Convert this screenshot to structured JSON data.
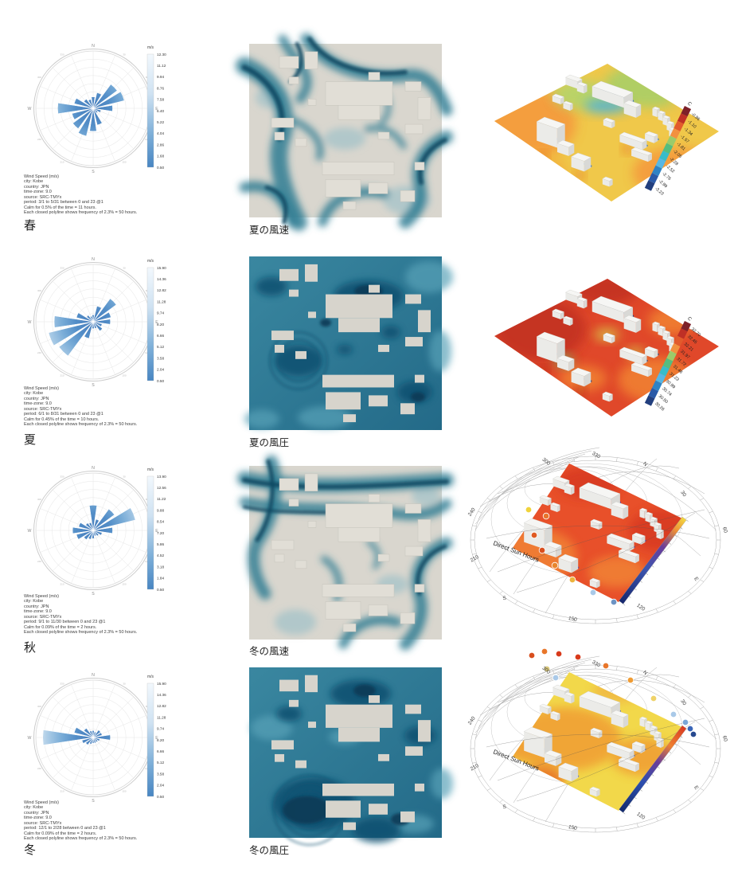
{
  "page": {
    "background": "#ffffff"
  },
  "windrose_common": {
    "cardinal_labels": [
      "N",
      "E",
      "S",
      "W"
    ],
    "degree_labels": [
      "30",
      "60",
      "120",
      "150",
      "210",
      "240",
      "300",
      "330"
    ],
    "petal_color_inner": "#4079ba",
    "petal_color_tip": "#dcebf6",
    "legend_top_color": "#f2f8fd",
    "legend_bottom_color": "#4886c2"
  },
  "windroses": [
    {
      "season_label": "春",
      "legend_title": "m/s",
      "legend_values": [
        "12.30",
        "11.12",
        "9.94",
        "8.76",
        "7.58",
        "6.40",
        "5.22",
        "4.04",
        "2.86",
        "1.68",
        "0.50"
      ],
      "meta_lines": [
        "Wind Speed (m/s)",
        "city: Kobe",
        "country: JPN",
        "time-zone: 9.0",
        "source: SRC-TMYx",
        "period: 3/1 to 5/31 between 0 and 23 @1",
        "Calm for 0.5% of the time = 11 hours.",
        "Each closed polyline shows frequency of 2.3% = 50 hours."
      ],
      "petals": [
        0.2,
        0.28,
        0.52,
        0.56,
        0.34,
        0.14,
        0.1,
        0.3,
        0.4,
        0.5,
        0.44,
        0.38,
        0.62,
        0.34,
        0.2,
        0.16
      ]
    },
    {
      "season_label": "夏",
      "legend_title": "m/s",
      "legend_values": [
        "15.90",
        "14.36",
        "12.82",
        "11.28",
        "9.74",
        "8.20",
        "6.66",
        "5.12",
        "3.58",
        "2.04",
        "0.50"
      ],
      "meta_lines": [
        "Wind Speed (m/s)",
        "city: Kobe",
        "country: JPN",
        "time-zone: 9.0",
        "source: SRC-TMYx",
        "period: 6/1 to 8/31 between 0 and 23 @1",
        "Calm for 0.45% of the time = 10 hours.",
        "Each closed polyline shows frequency of 2.3% = 50 hours."
      ],
      "petals": [
        0.12,
        0.28,
        0.5,
        0.32,
        0.3,
        0.16,
        0.2,
        0.12,
        0.12,
        0.3,
        0.74,
        0.8,
        0.68,
        0.3,
        0.14,
        0.1
      ]
    },
    {
      "season_label": "秋",
      "legend_title": "m/s",
      "legend_values": [
        "13.90",
        "12.56",
        "11.22",
        "9.88",
        "8.54",
        "7.20",
        "5.86",
        "4.52",
        "3.18",
        "1.84",
        "0.50"
      ],
      "meta_lines": [
        "Wind Speed (m/s)",
        "city: Kobe",
        "country: JPN",
        "time-zone: 9.0",
        "source: SRC-TMYx",
        "period: 9/1 to 11/30 between 0 and 23 @1",
        "Calm for 0.09% of the time = 2 hours.",
        "Each closed polyline shows frequency of 2.3% = 50 hours."
      ],
      "petals": [
        0.44,
        0.2,
        0.46,
        0.76,
        0.34,
        0.16,
        0.12,
        0.1,
        0.14,
        0.16,
        0.2,
        0.3,
        0.36,
        0.26,
        0.16,
        0.14
      ]
    },
    {
      "season_label": "冬",
      "legend_title": "m/s",
      "legend_values": [
        "15.90",
        "14.36",
        "12.82",
        "11.28",
        "9.74",
        "8.20",
        "6.66",
        "5.12",
        "3.58",
        "2.04",
        "0.50"
      ],
      "meta_lines": [
        "Wind Speed (m/s)",
        "city: Kobe",
        "country: JPN",
        "time-zone: 9.0",
        "source: SRC-TMYx",
        "period: 12/1 to 2/28 between 0 and 23 @1",
        "Calm for 0.09% of the time = 2 hours.",
        "Each closed polyline shows frequency of 2.3% = 50 hours."
      ],
      "petals": [
        0.12,
        0.1,
        0.16,
        0.16,
        0.3,
        0.12,
        0.1,
        0.1,
        0.1,
        0.12,
        0.16,
        0.2,
        0.88,
        0.34,
        0.2,
        0.12
      ]
    }
  ],
  "cfd_panels": [
    {
      "label": "夏の風速",
      "kind": "speed",
      "variant": 0
    },
    {
      "label": "夏の風圧",
      "kind": "pressure",
      "variant": 0
    },
    {
      "label": "冬の風速",
      "kind": "speed",
      "variant": 1
    },
    {
      "label": "冬の風圧",
      "kind": "pressure",
      "variant": 1
    }
  ],
  "cfd_colors": {
    "land": "#d9d6ce",
    "building_speed": "#e1ded6",
    "building_pressure": "#d7d4cc",
    "flow_mid": "#2e7d93",
    "flow_dark": "#0e4a63",
    "flow_light": "#8ab9c6",
    "pressure_top": "#3a87a0",
    "pressure_bottom": "#236a88",
    "pressure_dark": "#11506f",
    "pressure_navy": "#0a3a57",
    "pressure_light": "#58a2b8"
  },
  "thermal_panels": [
    {
      "legend_title": "C",
      "legend_values": [
        "-0.86",
        "-1.10",
        "-1.34",
        "-1.57",
        "-1.81",
        "-2.05",
        "-2.28",
        "-2.52",
        "-2.76",
        "-2.99",
        "-3.23"
      ],
      "variant": 0
    },
    {
      "legend_title": "C",
      "legend_values": [
        "32.70",
        "32.45",
        "32.21",
        "31.97",
        "31.72",
        "31.48",
        "31.23",
        "30.99",
        "30.74",
        "30.50",
        "30.26"
      ],
      "variant": 1
    }
  ],
  "thermal_scale_colors": [
    "#7d2029",
    "#bf3026",
    "#e25b2c",
    "#f2913f",
    "#9bcb6a",
    "#55bd7f",
    "#38bcca",
    "#57b7e5",
    "#2f83c5",
    "#2a5aa8",
    "#223f7e"
  ],
  "sun_panels": [
    {
      "title": "Direct Sun Hours",
      "compass_labels": [
        "300",
        "330",
        "N",
        "30",
        "60",
        "E",
        "120",
        "150",
        "S",
        "210",
        "240"
      ],
      "variant": 0
    },
    {
      "title": "Direct Sun Hours",
      "compass_labels": [
        "300",
        "330",
        "N",
        "30",
        "60",
        "E",
        "120",
        "150",
        "S",
        "210",
        "240"
      ],
      "variant": 1
    }
  ],
  "chart_data": [
    {
      "type": "windrose",
      "title": "Wind Speed (m/s) - Kobe JPN (spring 春)",
      "period": "3/1 to 5/31 between 0 and 23 @1",
      "calm": "0.5% of the time = 11 hours",
      "ring_frequency": "2.3% = 50 hours",
      "directions": [
        "N",
        "NNE",
        "NE",
        "ENE",
        "E",
        "ESE",
        "SE",
        "SSE",
        "S",
        "SSW",
        "SW",
        "WSW",
        "W",
        "WNW",
        "NW",
        "NNW"
      ],
      "relative_frequency": [
        0.2,
        0.28,
        0.52,
        0.56,
        0.34,
        0.14,
        0.1,
        0.3,
        0.4,
        0.5,
        0.44,
        0.38,
        0.62,
        0.34,
        0.2,
        0.16
      ],
      "speed_scale_mps": [
        0.5,
        1.68,
        2.86,
        4.04,
        5.22,
        6.4,
        7.58,
        8.76,
        9.94,
        11.12,
        12.3
      ]
    },
    {
      "type": "windrose",
      "title": "Wind Speed (m/s) - Kobe JPN (summer 夏)",
      "period": "6/1 to 8/31 between 0 and 23 @1",
      "calm": "0.45% of the time = 10 hours",
      "ring_frequency": "2.3% = 50 hours",
      "directions": [
        "N",
        "NNE",
        "NE",
        "ENE",
        "E",
        "ESE",
        "SE",
        "SSE",
        "S",
        "SSW",
        "SW",
        "WSW",
        "W",
        "WNW",
        "NW",
        "NNW"
      ],
      "relative_frequency": [
        0.12,
        0.28,
        0.5,
        0.32,
        0.3,
        0.16,
        0.2,
        0.12,
        0.12,
        0.3,
        0.74,
        0.8,
        0.68,
        0.3,
        0.14,
        0.1
      ],
      "speed_scale_mps": [
        0.5,
        2.04,
        3.58,
        5.12,
        6.66,
        8.2,
        9.74,
        11.28,
        12.82,
        14.36,
        15.9
      ]
    },
    {
      "type": "windrose",
      "title": "Wind Speed (m/s) - Kobe JPN (autumn 秋)",
      "period": "9/1 to 11/30 between 0 and 23 @1",
      "calm": "0.09% of the time = 2 hours",
      "ring_frequency": "2.3% = 50 hours",
      "directions": [
        "N",
        "NNE",
        "NE",
        "ENE",
        "E",
        "ESE",
        "SE",
        "SSE",
        "S",
        "SSW",
        "SW",
        "WSW",
        "W",
        "WNW",
        "NW",
        "NNW"
      ],
      "relative_frequency": [
        0.44,
        0.2,
        0.46,
        0.76,
        0.34,
        0.16,
        0.12,
        0.1,
        0.14,
        0.16,
        0.2,
        0.3,
        0.36,
        0.26,
        0.16,
        0.14
      ],
      "speed_scale_mps": [
        0.5,
        1.84,
        3.18,
        4.52,
        5.86,
        7.2,
        8.54,
        9.88,
        11.22,
        12.56,
        13.9
      ]
    },
    {
      "type": "windrose",
      "title": "Wind Speed (m/s) - Kobe JPN (winter 冬)",
      "period": "12/1 to 2/28 between 0 and 23 @1",
      "calm": "0.09% of the time = 2 hours",
      "ring_frequency": "2.3% = 50 hours",
      "directions": [
        "N",
        "NNE",
        "NE",
        "ENE",
        "E",
        "ESE",
        "SE",
        "SSE",
        "S",
        "SSW",
        "SW",
        "WSW",
        "W",
        "WNW",
        "NW",
        "NNW"
      ],
      "relative_frequency": [
        0.12,
        0.1,
        0.16,
        0.16,
        0.3,
        0.12,
        0.1,
        0.1,
        0.1,
        0.12,
        0.16,
        0.2,
        0.88,
        0.34,
        0.2,
        0.12
      ],
      "speed_scale_mps": [
        0.5,
        2.04,
        3.58,
        5.12,
        6.66,
        8.2,
        9.74,
        11.28,
        12.82,
        14.36,
        15.9
      ]
    },
    {
      "type": "heatmap",
      "title": "C",
      "scale_c": [
        -0.86,
        -1.1,
        -1.34,
        -1.57,
        -1.81,
        -2.05,
        -2.28,
        -2.52,
        -2.76,
        -2.99,
        -3.23
      ]
    },
    {
      "type": "heatmap",
      "title": "C",
      "scale_c": [
        32.7,
        32.45,
        32.21,
        31.97,
        31.72,
        31.48,
        31.23,
        30.99,
        30.74,
        30.5,
        30.26
      ]
    },
    {
      "type": "heatmap",
      "title": "Direct Sun Hours"
    },
    {
      "type": "heatmap",
      "title": "Direct Sun Hours"
    }
  ]
}
